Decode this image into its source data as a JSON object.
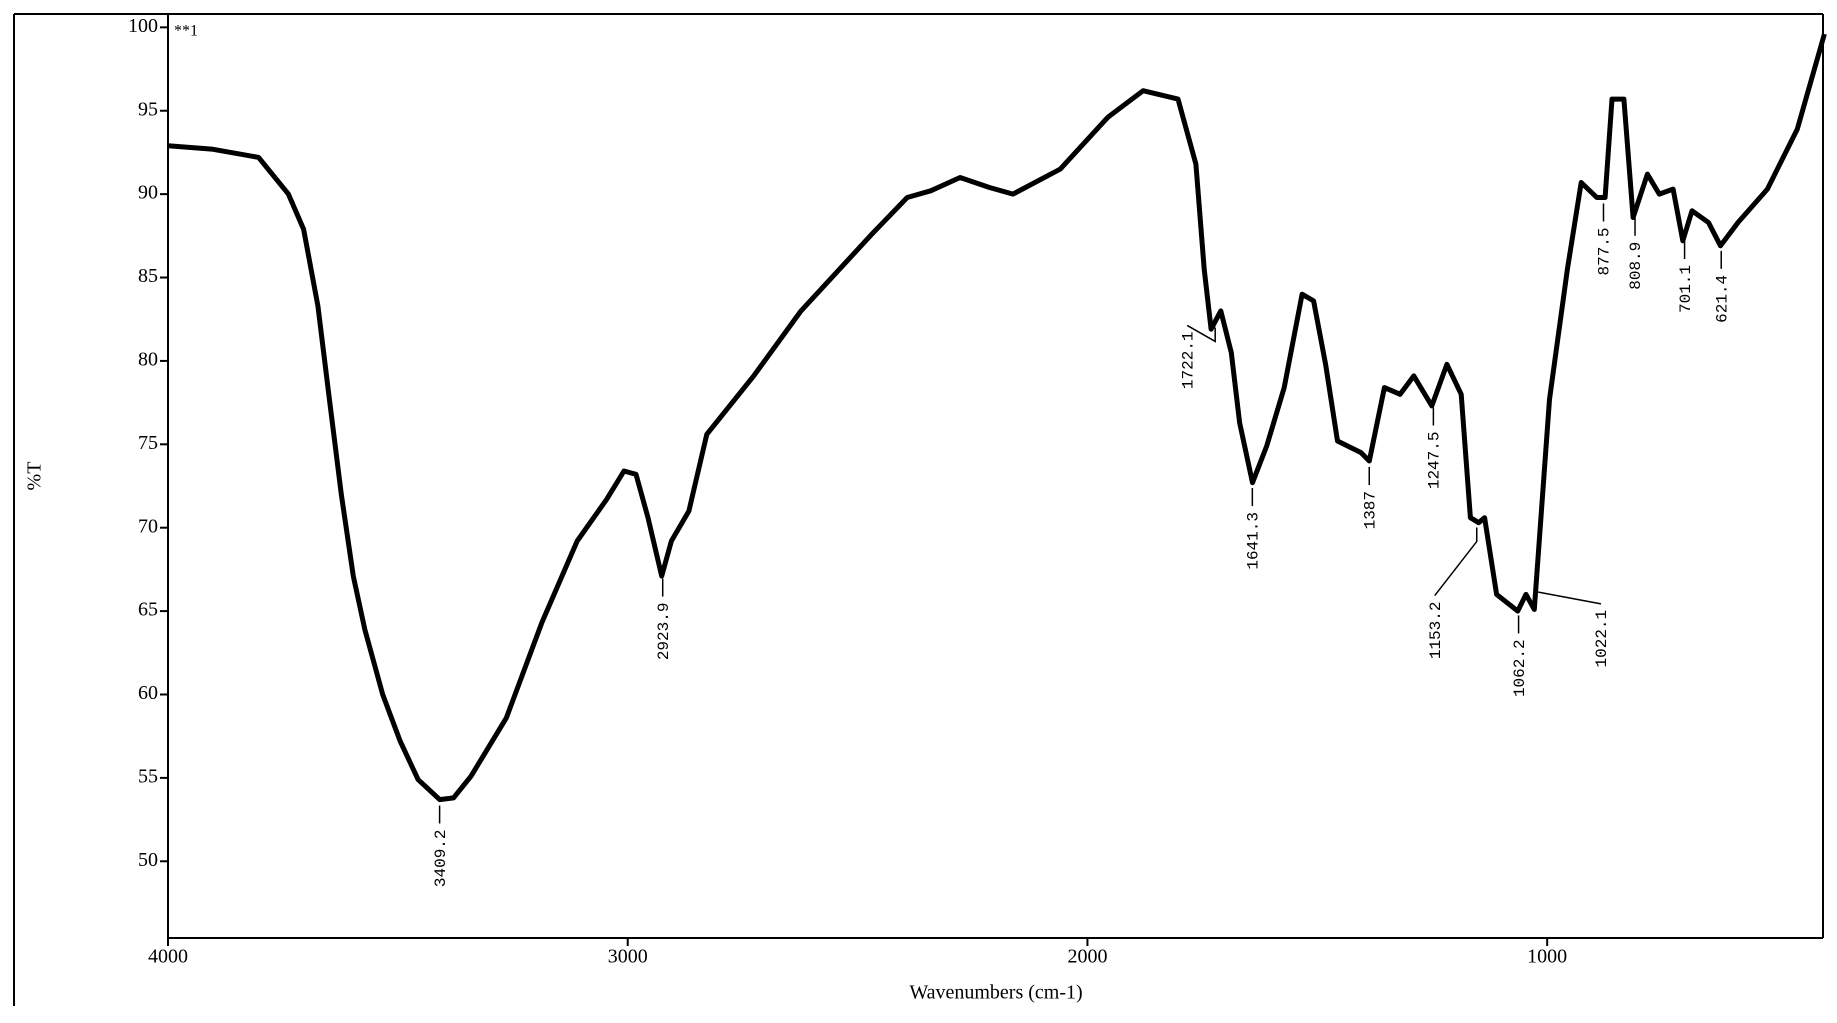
{
  "chart_data": {
    "type": "line",
    "title": "**1",
    "xlabel": "Wavenumbers (cm-1)",
    "ylabel": "%T",
    "xlim": [
      4000,
      400
    ],
    "ylim": [
      45.4,
      100.8
    ],
    "xticks": [
      4000,
      3000,
      2000,
      1000
    ],
    "yticks": [
      50,
      55,
      60,
      65,
      70,
      75,
      80,
      85,
      90,
      95,
      100
    ],
    "color": "#000000",
    "x": [
      4000,
      3905,
      3803,
      3738,
      3705,
      3674,
      3649,
      3623,
      3597,
      3572,
      3533,
      3495,
      3456,
      3409,
      3379,
      3341,
      3264,
      3187,
      3110,
      3046,
      3008,
      2982,
      2956,
      2926,
      2905,
      2867,
      2828,
      2726,
      2623,
      2469,
      2392,
      2341,
      2277,
      2213,
      2162,
      2059,
      1956,
      1879,
      1803,
      1764,
      1746,
      1731,
      1710,
      1687,
      1669,
      1641,
      1610,
      1572,
      1533,
      1508,
      1482,
      1456,
      1405,
      1387,
      1354,
      1320,
      1290,
      1251,
      1218,
      1187,
      1167,
      1149,
      1136,
      1110,
      1064,
      1046,
      1028,
      995,
      956,
      926,
      892,
      874,
      859,
      833,
      813,
      782,
      756,
      726,
      705,
      685,
      649,
      623,
      585,
      521,
      456,
      397
    ],
    "values": [
      92.9,
      92.7,
      92.2,
      90.0,
      87.9,
      83.3,
      77.7,
      72.0,
      67.1,
      63.9,
      60.0,
      57.2,
      54.9,
      53.7,
      53.8,
      55.1,
      58.6,
      64.3,
      69.2,
      71.7,
      73.4,
      73.2,
      70.6,
      67.1,
      69.2,
      71.0,
      75.6,
      79.1,
      83.0,
      87.6,
      89.8,
      90.2,
      91.0,
      90.4,
      90.0,
      91.5,
      94.6,
      96.2,
      95.7,
      91.8,
      85.5,
      81.9,
      83.0,
      80.5,
      76.3,
      72.7,
      74.9,
      78.4,
      84.0,
      83.6,
      79.8,
      75.2,
      74.5,
      74.0,
      78.4,
      78.0,
      79.1,
      77.3,
      79.8,
      78.0,
      70.6,
      70.3,
      70.6,
      66.0,
      65.0,
      66.0,
      65.1,
      77.7,
      85.5,
      90.7,
      89.8,
      89.8,
      95.7,
      95.7,
      88.6,
      91.2,
      90.0,
      90.3,
      87.2,
      89.0,
      88.3,
      86.9,
      88.3,
      90.3,
      93.9,
      99.6
    ],
    "peaks": [
      3409.2,
      2923.9,
      1722.1,
      1641.3,
      1387.0,
      1247.5,
      1153.2,
      1062.2,
      1022.1,
      877.5,
      808.9,
      701.1,
      621.4
    ]
  }
}
